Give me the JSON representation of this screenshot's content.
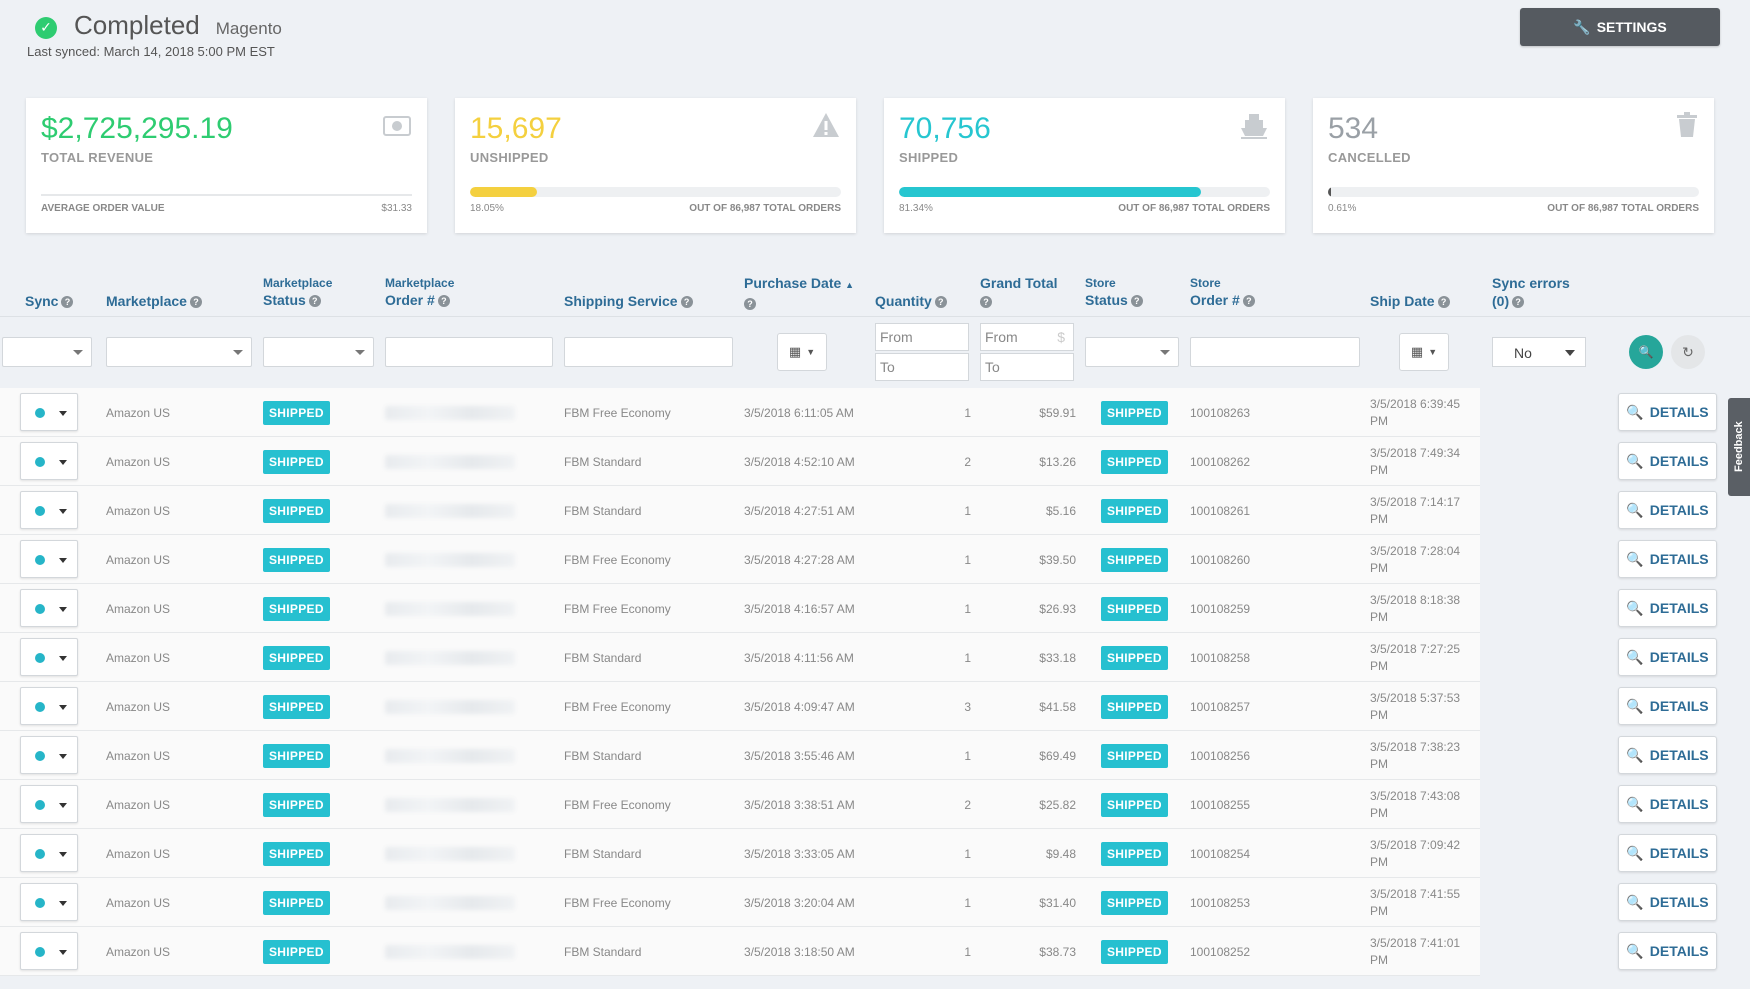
{
  "header": {
    "status": "Completed",
    "platform": "Magento",
    "last_synced": "Last synced: March 14, 2018 5:00 PM EST",
    "settings_label": "SETTINGS"
  },
  "cards": [
    {
      "value": "$2,725,295.19",
      "label": "TOTAL REVENUE",
      "foot_left": "AVERAGE ORDER VALUE",
      "foot_right": "$31.33",
      "color": "#2ecc71",
      "icon": "money-icon"
    },
    {
      "value": "15,697",
      "label": "UNSHIPPED",
      "foot_left": "18.05%",
      "foot_right": "OUT OF 86,987 TOTAL ORDERS",
      "color": "#f4d03f",
      "progress": 0.1805,
      "icon": "warning-icon"
    },
    {
      "value": "70,756",
      "label": "SHIPPED",
      "foot_left": "81.34%",
      "foot_right": "OUT OF 86,987 TOTAL ORDERS",
      "color": "#26c6d0",
      "progress": 0.8134,
      "icon": "ship-icon"
    },
    {
      "value": "534",
      "label": "CANCELLED",
      "foot_left": "0.61%",
      "foot_right": "OUT OF 86,987 TOTAL ORDERS",
      "color": "#9aa0a6",
      "progress": 0.0061,
      "icon": "trash-icon"
    }
  ],
  "columns": {
    "sync": "Sync",
    "marketplace": "Marketplace",
    "mp_status_top": "Marketplace",
    "mp_status": "Status",
    "mp_order_top": "Marketplace",
    "mp_order": "Order #",
    "shipping_service": "Shipping Service",
    "purchase_date": "Purchase Date",
    "quantity": "Quantity",
    "grand_total": "Grand Total",
    "store_status_top": "Store",
    "store_status": "Status",
    "store_order_top": "Store",
    "store_order": "Order #",
    "ship_date": "Ship Date",
    "sync_errors": "Sync errors",
    "sync_errors_count": "(0)"
  },
  "filters": {
    "from": "From",
    "to": "To",
    "sync_errors_value": "No"
  },
  "rows": [
    {
      "marketplace": "Amazon US",
      "mp_status": "SHIPPED",
      "service": "FBM Free Economy",
      "purchase": "3/5/2018 6:11:05 AM",
      "qty": "1",
      "total": "$59.91",
      "store_status": "SHIPPED",
      "store_order": "100108263",
      "ship1": "3/5/2018 6:39:45",
      "ship2": "PM"
    },
    {
      "marketplace": "Amazon US",
      "mp_status": "SHIPPED",
      "service": "FBM Standard",
      "purchase": "3/5/2018 4:52:10 AM",
      "qty": "2",
      "total": "$13.26",
      "store_status": "SHIPPED",
      "store_order": "100108262",
      "ship1": "3/5/2018 7:49:34",
      "ship2": "PM"
    },
    {
      "marketplace": "Amazon US",
      "mp_status": "SHIPPED",
      "service": "FBM Standard",
      "purchase": "3/5/2018 4:27:51 AM",
      "qty": "1",
      "total": "$5.16",
      "store_status": "SHIPPED",
      "store_order": "100108261",
      "ship1": "3/5/2018 7:14:17",
      "ship2": "PM"
    },
    {
      "marketplace": "Amazon US",
      "mp_status": "SHIPPED",
      "service": "FBM Free Economy",
      "purchase": "3/5/2018 4:27:28 AM",
      "qty": "1",
      "total": "$39.50",
      "store_status": "SHIPPED",
      "store_order": "100108260",
      "ship1": "3/5/2018 7:28:04",
      "ship2": "PM"
    },
    {
      "marketplace": "Amazon US",
      "mp_status": "SHIPPED",
      "service": "FBM Free Economy",
      "purchase": "3/5/2018 4:16:57 AM",
      "qty": "1",
      "total": "$26.93",
      "store_status": "SHIPPED",
      "store_order": "100108259",
      "ship1": "3/5/2018 8:18:38",
      "ship2": "PM"
    },
    {
      "marketplace": "Amazon US",
      "mp_status": "SHIPPED",
      "service": "FBM Standard",
      "purchase": "3/5/2018 4:11:56 AM",
      "qty": "1",
      "total": "$33.18",
      "store_status": "SHIPPED",
      "store_order": "100108258",
      "ship1": "3/5/2018 7:27:25",
      "ship2": "PM"
    },
    {
      "marketplace": "Amazon US",
      "mp_status": "SHIPPED",
      "service": "FBM Free Economy",
      "purchase": "3/5/2018 4:09:47 AM",
      "qty": "3",
      "total": "$41.58",
      "store_status": "SHIPPED",
      "store_order": "100108257",
      "ship1": "3/5/2018 5:37:53",
      "ship2": "PM"
    },
    {
      "marketplace": "Amazon US",
      "mp_status": "SHIPPED",
      "service": "FBM Standard",
      "purchase": "3/5/2018 3:55:46 AM",
      "qty": "1",
      "total": "$69.49",
      "store_status": "SHIPPED",
      "store_order": "100108256",
      "ship1": "3/5/2018 7:38:23",
      "ship2": "PM"
    },
    {
      "marketplace": "Amazon US",
      "mp_status": "SHIPPED",
      "service": "FBM Free Economy",
      "purchase": "3/5/2018 3:38:51 AM",
      "qty": "2",
      "total": "$25.82",
      "store_status": "SHIPPED",
      "store_order": "100108255",
      "ship1": "3/5/2018 7:43:08",
      "ship2": "PM"
    },
    {
      "marketplace": "Amazon US",
      "mp_status": "SHIPPED",
      "service": "FBM Standard",
      "purchase": "3/5/2018 3:33:05 AM",
      "qty": "1",
      "total": "$9.48",
      "store_status": "SHIPPED",
      "store_order": "100108254",
      "ship1": "3/5/2018 7:09:42",
      "ship2": "PM"
    },
    {
      "marketplace": "Amazon US",
      "mp_status": "SHIPPED",
      "service": "FBM Free Economy",
      "purchase": "3/5/2018 3:20:04 AM",
      "qty": "1",
      "total": "$31.40",
      "store_status": "SHIPPED",
      "store_order": "100108253",
      "ship1": "3/5/2018 7:41:55",
      "ship2": "PM"
    },
    {
      "marketplace": "Amazon US",
      "mp_status": "SHIPPED",
      "service": "FBM Standard",
      "purchase": "3/5/2018 3:18:50 AM",
      "qty": "1",
      "total": "$38.73",
      "store_status": "SHIPPED",
      "store_order": "100108252",
      "ship1": "3/5/2018 7:41:01",
      "ship2": "PM"
    }
  ],
  "details_label": "DETAILS",
  "feedback_label": "Feedback"
}
